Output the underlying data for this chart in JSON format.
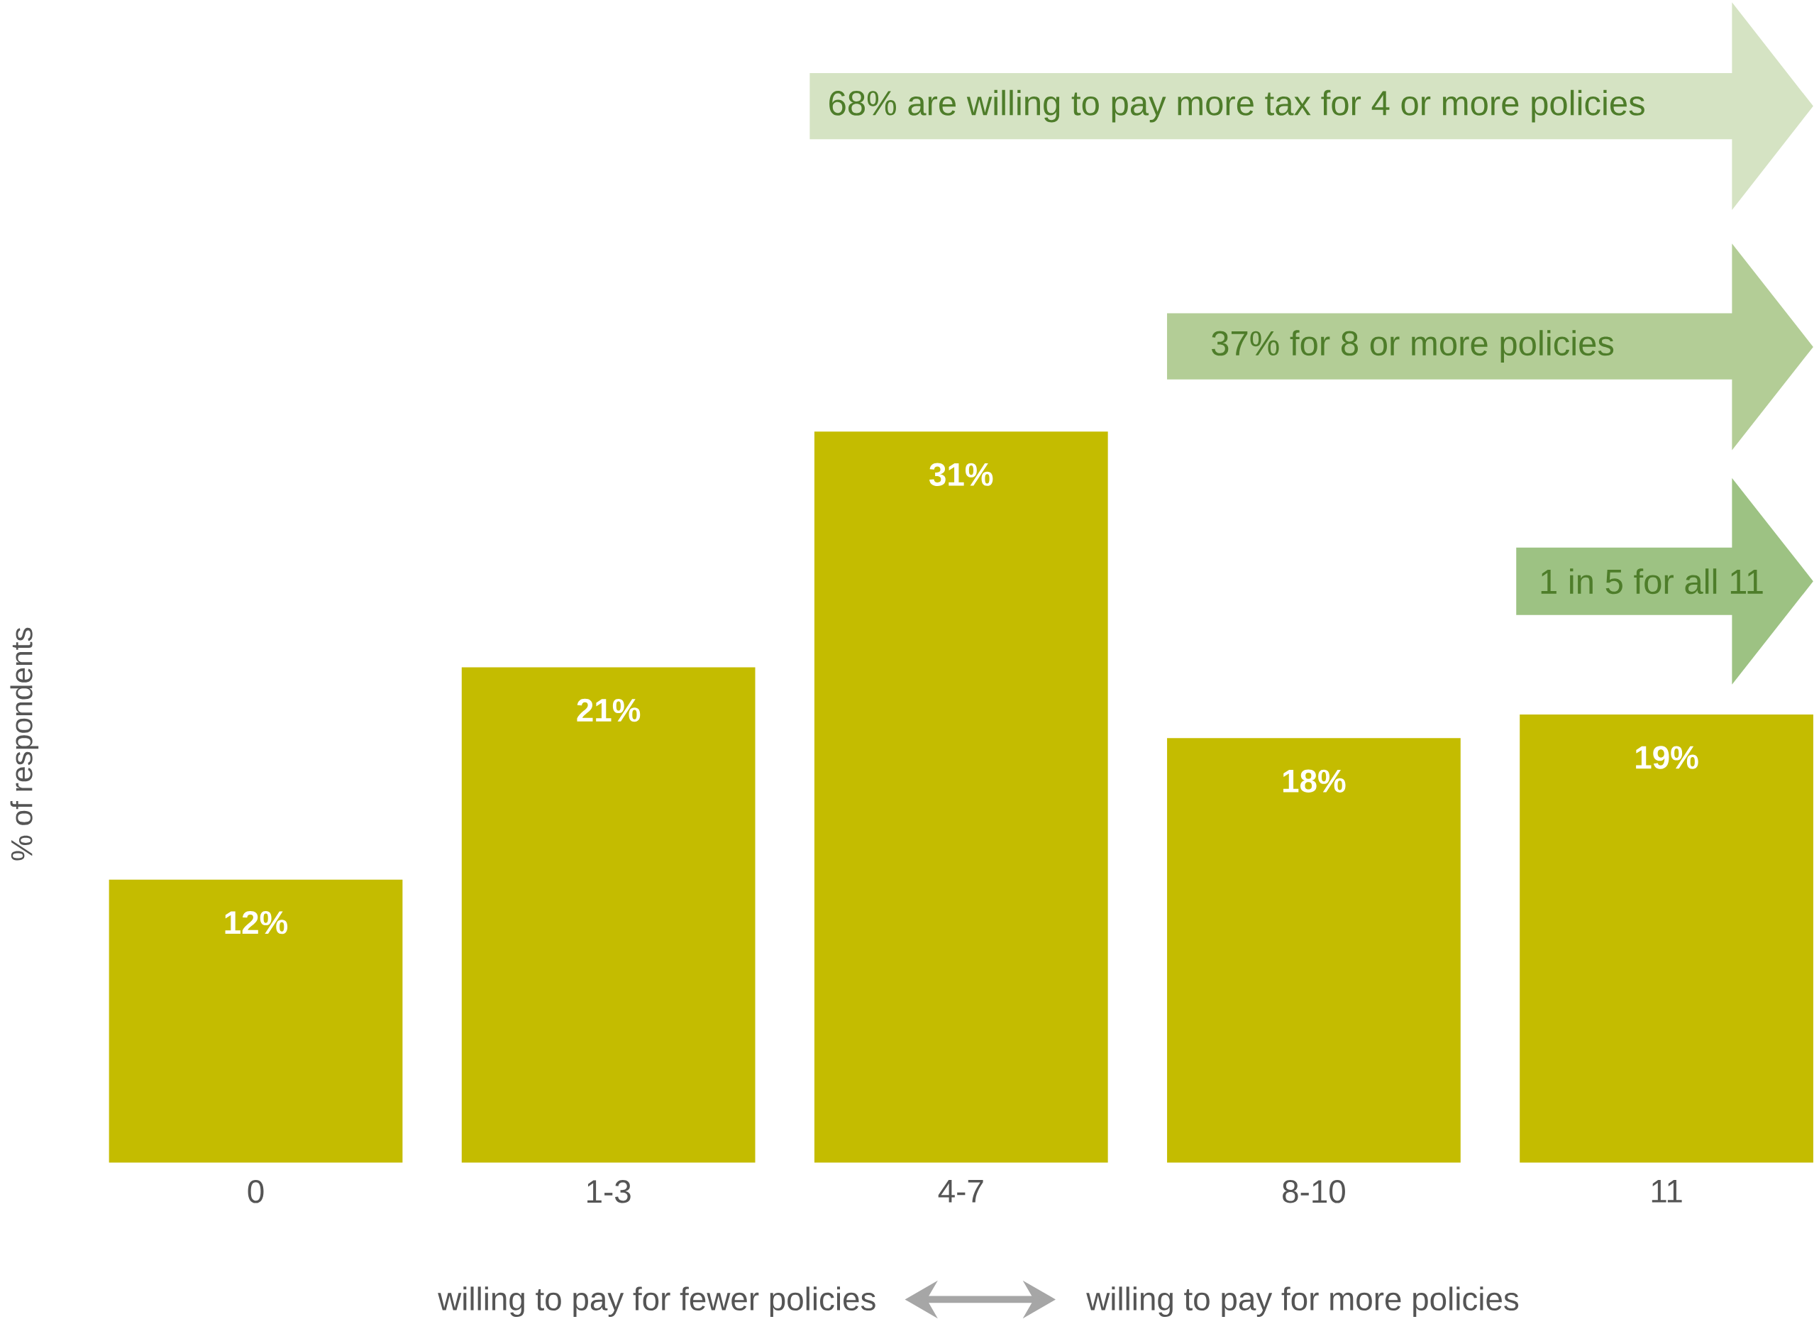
{
  "chart_data": {
    "type": "bar",
    "categories": [
      "0",
      "1-3",
      "4-7",
      "8-10",
      "11"
    ],
    "values": [
      12,
      21,
      31,
      18,
      19
    ],
    "value_labels": [
      "12%",
      "21%",
      "31%",
      "18%",
      "19%"
    ],
    "color": "#c4bc00",
    "ylabel": "% of respondents",
    "annotations": [
      "68% are willing to pay more tax for 4 or more policies",
      "37% for 8 or more policies",
      "1 in 5 for all 11",
      "willing to pay for fewer policies",
      "willing to pay for more policies"
    ]
  }
}
